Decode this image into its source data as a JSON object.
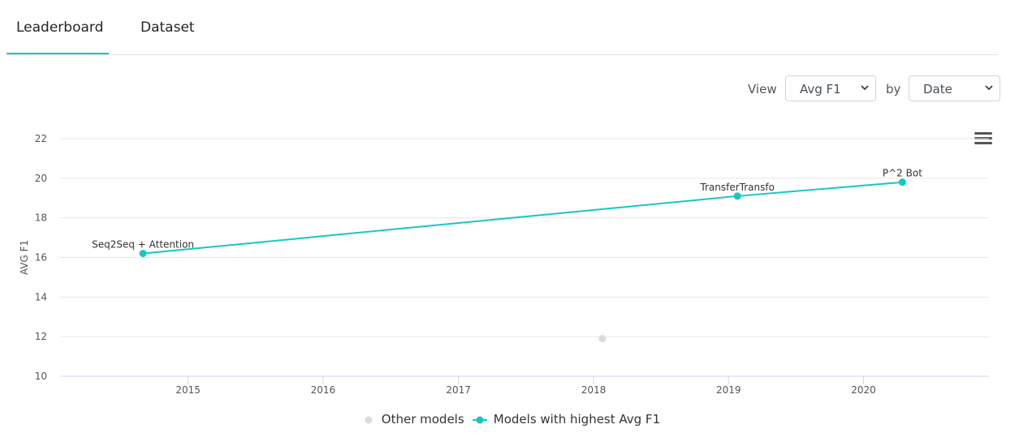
{
  "tabs": [
    {
      "label": "Leaderboard",
      "active": true
    },
    {
      "label": "Dataset",
      "active": false
    }
  ],
  "controls": {
    "view_label": "View",
    "view_value": "Avg F1",
    "by_label": "by",
    "by_value": "Date"
  },
  "colors": {
    "accent": "#16c7c0",
    "other": "#dcdcdc"
  },
  "chart_data": {
    "type": "line",
    "ylabel": "AVG F1",
    "xlabel": "",
    "ylim": [
      10,
      22
    ],
    "yticks": [
      10,
      12,
      14,
      16,
      18,
      20,
      22
    ],
    "xlim": [
      "2014-01-20",
      "2020-12-05"
    ],
    "xticks": [
      "2015",
      "2016",
      "2017",
      "2018",
      "2019",
      "2020"
    ],
    "grid": true,
    "legend_position": "bottom",
    "series": [
      {
        "name": "Models with highest Avg F1",
        "color": "#16c7c0",
        "points": [
          {
            "x": "2014-09-01",
            "y": 16.2,
            "label": "Seq2Seq + Attention"
          },
          {
            "x": "2019-01-25",
            "y": 19.1,
            "label": "TransferTransfo"
          },
          {
            "x": "2020-04-15",
            "y": 19.8,
            "label": "P^2 Bot"
          }
        ]
      },
      {
        "name": "Other models",
        "color": "#dcdcdc",
        "points": [
          {
            "x": "2018-01-25",
            "y": 11.9
          }
        ]
      }
    ]
  }
}
